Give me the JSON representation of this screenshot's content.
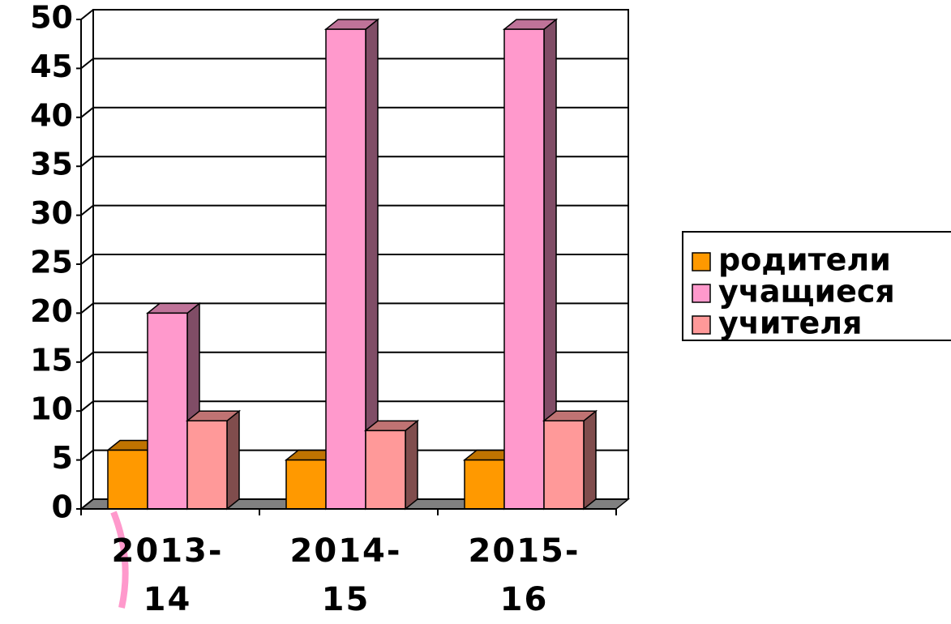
{
  "chart_data": {
    "type": "bar3d",
    "categories": [
      "2013-14",
      "2014-15",
      "2015-16"
    ],
    "series": [
      {
        "name": "родители",
        "color": "#ff9900",
        "values": [
          6,
          5,
          5
        ]
      },
      {
        "name": "учащиеся",
        "color": "#ff99cc",
        "values": [
          20,
          49,
          49
        ]
      },
      {
        "name": "учителя",
        "color": "#ff9999",
        "values": [
          9,
          8,
          9
        ]
      }
    ],
    "ylim": [
      0,
      50
    ],
    "yticks": [
      0,
      5,
      10,
      15,
      20,
      25,
      30,
      35,
      40,
      45,
      50
    ],
    "grid": true,
    "legend": "right"
  }
}
